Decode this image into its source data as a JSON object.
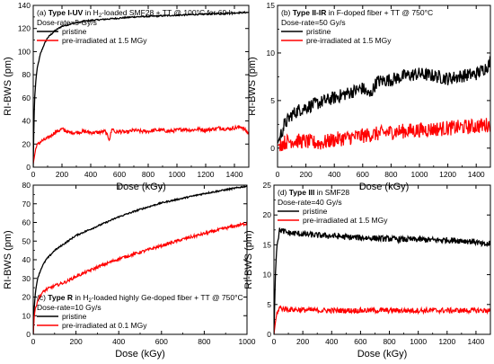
{
  "chart_data": [
    {
      "type": "line",
      "panel_label": "(a)",
      "title_bold": "Type I-UV",
      "title_pre": " in H",
      "title_sub": "2",
      "title_post": "-loaded SMF28 + TT @ 100°C for 69 h",
      "dose_rate": "Dose-rate=5 Gy/s",
      "xlabel": "Dose (kGy)",
      "ylabel": "RI-BWS (pm)",
      "xlim": [
        0,
        1500
      ],
      "ylim": [
        0,
        140
      ],
      "xticks": [
        "0",
        "200",
        "400",
        "600",
        "800",
        "1000",
        "1200",
        "1400"
      ],
      "yticks": [
        "0",
        "20",
        "40",
        "60",
        "80",
        "100",
        "120",
        "140"
      ],
      "series": [
        {
          "name": "pristine",
          "color": "#000000",
          "x": [
            0,
            5,
            10,
            20,
            30,
            50,
            75,
            100,
            150,
            200,
            300,
            400,
            500,
            600,
            700,
            800,
            900,
            1000,
            1100,
            1200,
            1300,
            1400,
            1500
          ],
          "y": [
            0,
            40,
            60,
            78,
            87,
            98,
            106,
            112,
            118,
            122,
            125,
            127,
            128,
            129,
            130,
            130.5,
            131,
            131.5,
            132,
            132.5,
            133,
            133.5,
            134
          ]
        },
        {
          "name": "pre-irradiated at 1.5 MGy",
          "color": "#ff0000",
          "x": [
            0,
            20,
            50,
            100,
            150,
            200,
            250,
            300,
            350,
            400,
            450,
            500,
            530,
            550,
            570,
            600,
            650,
            700,
            750,
            800,
            850,
            900,
            950,
            1000,
            1050,
            1100,
            1150,
            1200,
            1250,
            1300,
            1350,
            1400,
            1450,
            1500
          ],
          "y": [
            3,
            18,
            22,
            25,
            30,
            33,
            30,
            30,
            31,
            30,
            30,
            31,
            24,
            34,
            30,
            31,
            30,
            32,
            31,
            31,
            32,
            32,
            31,
            32,
            33,
            32,
            33,
            32,
            33,
            34,
            33,
            34,
            35,
            29
          ]
        }
      ]
    },
    {
      "type": "line",
      "panel_label": "(b)",
      "title_bold": "Type II-IR",
      "title_pre": "",
      "title_sub": "",
      "title_post": " in F-doped fiber + TT @ 750°C",
      "dose_rate": "Dose-rate=50 Gy/s",
      "xlabel": "Dose (kGy)",
      "ylabel": "RI-BWS (pm)",
      "xlim": [
        0,
        1500
      ],
      "ylim": [
        -2,
        15
      ],
      "xticks": [
        "0",
        "200",
        "400",
        "600",
        "800",
        "1000",
        "1200",
        "1400"
      ],
      "yticks": [
        "0",
        "5",
        "10",
        "15"
      ],
      "series": [
        {
          "name": "pristine",
          "color": "#000000",
          "x": [
            0,
            25,
            50,
            100,
            150,
            200,
            300,
            400,
            500,
            600,
            650,
            700,
            800,
            900,
            1000,
            1100,
            1200,
            1300,
            1400,
            1470,
            1500
          ],
          "y": [
            0.5,
            1.5,
            2.5,
            3.5,
            4,
            4.3,
            4.8,
            5.3,
            5.8,
            6.3,
            5.5,
            7,
            7.2,
            7.6,
            7.8,
            7.6,
            7.3,
            7.6,
            7.8,
            8.5,
            9
          ]
        },
        {
          "name": "pre-irradiated at 1.5 MGy",
          "color": "#ff0000",
          "x": [
            0,
            50,
            100,
            200,
            300,
            400,
            500,
            600,
            700,
            800,
            900,
            1000,
            1100,
            1200,
            1300,
            1400,
            1500
          ],
          "y": [
            0.3,
            0.6,
            0.8,
            0.7,
            0.5,
            0.9,
            1.1,
            1.3,
            1.5,
            1.7,
            1.8,
            1.9,
            2.0,
            2.1,
            2.2,
            2.3,
            2.5
          ]
        }
      ]
    },
    {
      "type": "line",
      "panel_label": "(c)",
      "title_bold": "Type R",
      "title_pre": " in H",
      "title_sub": "2",
      "title_post": "-loaded highly Ge-doped fiber + TT @ 750°C",
      "dose_rate": "Dose-rate=10 Gy/s",
      "xlabel": "Dose (kGy)",
      "ylabel": "RI-BWS (pm)",
      "xlim": [
        0,
        1000
      ],
      "ylim": [
        0,
        80
      ],
      "xticks": [
        "0",
        "200",
        "400",
        "600",
        "800",
        "1000"
      ],
      "yticks": [
        "0",
        "10",
        "20",
        "30",
        "40",
        "50",
        "60",
        "70",
        "80"
      ],
      "series": [
        {
          "name": "pristine",
          "color": "#000000",
          "x": [
            0,
            5,
            10,
            20,
            40,
            60,
            100,
            150,
            200,
            300,
            400,
            500,
            600,
            700,
            800,
            900,
            1000
          ],
          "y": [
            0,
            15,
            22,
            30,
            36,
            40,
            45,
            49,
            53,
            58,
            63,
            67,
            70.5,
            73,
            75.5,
            77.5,
            79.5
          ]
        },
        {
          "name": "pre-irradiated at 0.1 MGy",
          "color": "#ff0000",
          "x": [
            0,
            5,
            10,
            20,
            40,
            60,
            100,
            150,
            200,
            300,
            400,
            500,
            600,
            700,
            800,
            900,
            1000
          ],
          "y": [
            0,
            10,
            14,
            18,
            22,
            24,
            26,
            28,
            31,
            36,
            40.5,
            44,
            47.5,
            51,
            54,
            57,
            59.5
          ]
        }
      ]
    },
    {
      "type": "line",
      "panel_label": "(d)",
      "title_bold": "Type III",
      "title_pre": "",
      "title_sub": "",
      "title_post": " in SMF28",
      "dose_rate": "Dose-rate=40 Gy/s",
      "xlabel": "Dose (kGy)",
      "ylabel": "RI-BWS (pm)",
      "xlim": [
        0,
        1500
      ],
      "ylim": [
        0,
        25
      ],
      "xticks": [
        "0",
        "200",
        "400",
        "600",
        "800",
        "1000",
        "1200",
        "1400"
      ],
      "yticks": [
        "0",
        "5",
        "10",
        "15",
        "20",
        "25"
      ],
      "series": [
        {
          "name": "pristine",
          "color": "#000000",
          "x": [
            0,
            10,
            20,
            40,
            60,
            100,
            200,
            300,
            400,
            500,
            600,
            700,
            800,
            900,
            1000,
            1100,
            1200,
            1300,
            1400,
            1450,
            1500
          ],
          "y": [
            0,
            10,
            15,
            17.5,
            17.3,
            17,
            16.8,
            16.6,
            16.5,
            16.3,
            16.2,
            16.1,
            16,
            15.9,
            15.9,
            15.8,
            15.8,
            15.7,
            15.5,
            15,
            15.2
          ]
        },
        {
          "name": "pre-irradiated at 1.5 MGy",
          "color": "#ff0000",
          "x": [
            0,
            10,
            20,
            40,
            60,
            100,
            200,
            300,
            400,
            500,
            600,
            700,
            800,
            900,
            1000,
            1100,
            1200,
            1300,
            1400,
            1500
          ],
          "y": [
            0,
            2,
            3.5,
            4.5,
            4.3,
            4.2,
            4.1,
            4.0,
            4.0,
            4.0,
            4.0,
            4.0,
            4.0,
            4.0,
            4.0,
            4.0,
            4.0,
            4.0,
            4.0,
            4.0
          ]
        }
      ]
    }
  ]
}
